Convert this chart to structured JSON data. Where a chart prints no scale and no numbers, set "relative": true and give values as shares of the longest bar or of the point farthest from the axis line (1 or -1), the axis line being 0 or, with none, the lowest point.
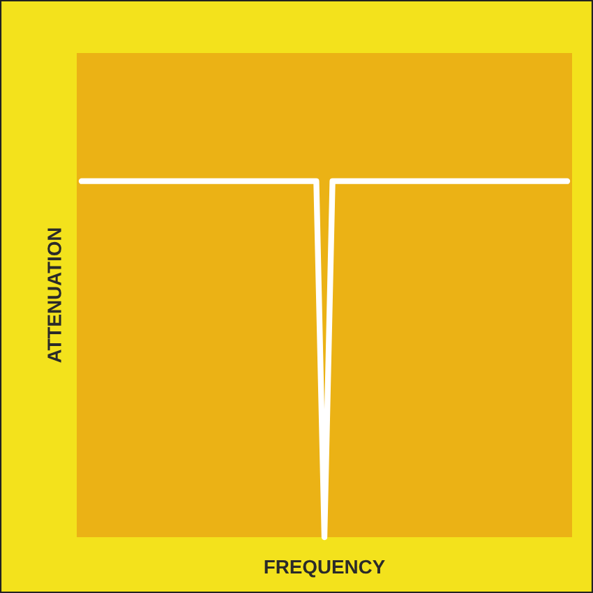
{
  "chart_data": {
    "type": "line",
    "xlabel": "FREQUENCY",
    "ylabel": "ATTENUATION",
    "relative": true,
    "categories": [
      null,
      null,
      null,
      null,
      null,
      null,
      null,
      null,
      null,
      null,
      null,
      null,
      null,
      null,
      null,
      null,
      null,
      null,
      null,
      null,
      null,
      null,
      null,
      null,
      null,
      null,
      null,
      null,
      null,
      null,
      null,
      null,
      null,
      null,
      null,
      null,
      null,
      null,
      null,
      null,
      null,
      null,
      null,
      null,
      null,
      null,
      null,
      null,
      null,
      null,
      null,
      null,
      null,
      null,
      null,
      null,
      null,
      null,
      null,
      null,
      null
    ],
    "series": [
      {
        "color": "#ffffff",
        "values": [
          1,
          1,
          1,
          1,
          1,
          1,
          1,
          1,
          1,
          1,
          1,
          1,
          1,
          1,
          1,
          1,
          1,
          1,
          1,
          1,
          1,
          1,
          1,
          1,
          1,
          1,
          1,
          1,
          1,
          1,
          0,
          1,
          1,
          1,
          1,
          1,
          1,
          1,
          1,
          1,
          1,
          1,
          1,
          1,
          1,
          1,
          1,
          1,
          1,
          1,
          1,
          1,
          1,
          1,
          1,
          1,
          1,
          1,
          1,
          1,
          1
        ]
      }
    ],
    "grid": false,
    "marker": "none",
    "line_style": "solid"
  }
}
